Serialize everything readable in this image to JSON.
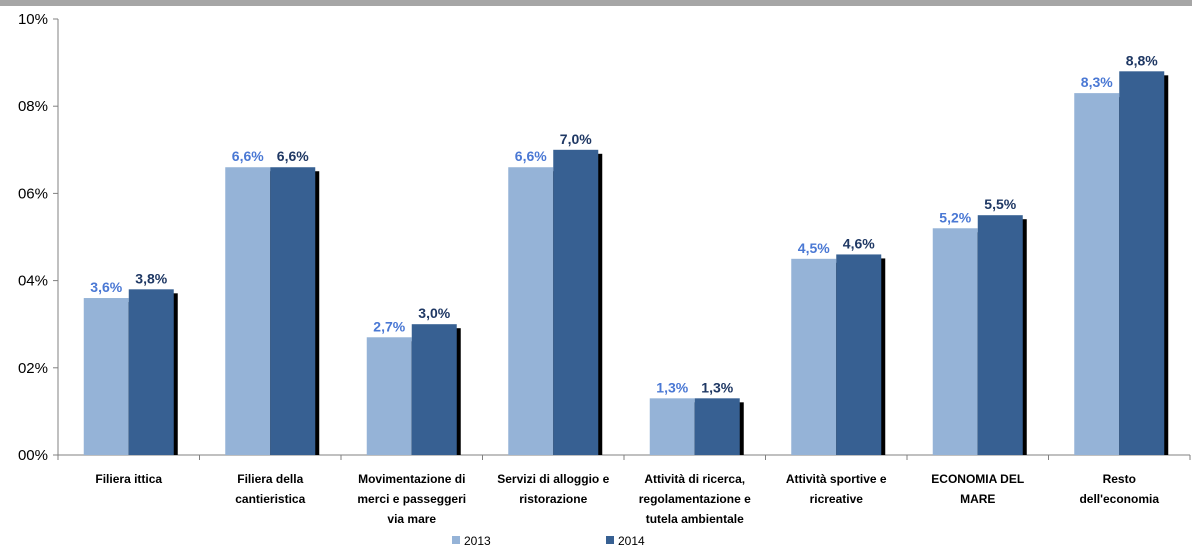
{
  "chart_data": {
    "type": "bar",
    "title": "",
    "xlabel": "",
    "ylabel": "",
    "ylim": [
      0,
      10
    ],
    "yticks": [
      "00%",
      "02%",
      "04%",
      "06%",
      "08%",
      "10%"
    ],
    "grid": false,
    "legend_position": "bottom",
    "categories": [
      [
        "Filiera ittica"
      ],
      [
        "Filiera della",
        "cantieristica"
      ],
      [
        "Movimentazione di",
        "merci e passeggeri",
        "via mare"
      ],
      [
        "Servizi di alloggio e",
        "ristorazione"
      ],
      [
        "Attività di ricerca,",
        "regolamentazione e",
        "tutela ambientale"
      ],
      [
        "Attività sportive e",
        "ricreative"
      ],
      [
        "ECONOMIA DEL",
        "MARE"
      ],
      [
        "Resto",
        "dell'economia"
      ]
    ],
    "series": [
      {
        "name": "2013",
        "color": "#95b3d7",
        "label_color": "#4a78d4",
        "values": [
          3.6,
          6.6,
          2.7,
          6.6,
          1.3,
          4.5,
          5.2,
          8.3
        ],
        "labels": [
          "3,6%",
          "6,6%",
          "2,7%",
          "6,6%",
          "1,3%",
          "4,5%",
          "5,2%",
          "8,3%"
        ]
      },
      {
        "name": "2014",
        "color": "#376092",
        "label_color": "#1f3864",
        "values": [
          3.8,
          6.6,
          3.0,
          7.0,
          1.3,
          4.6,
          5.5,
          8.8
        ],
        "labels": [
          "3,8%",
          "6,6%",
          "3,0%",
          "7,0%",
          "1,3%",
          "4,6%",
          "5,5%",
          "8,8%"
        ]
      }
    ]
  }
}
